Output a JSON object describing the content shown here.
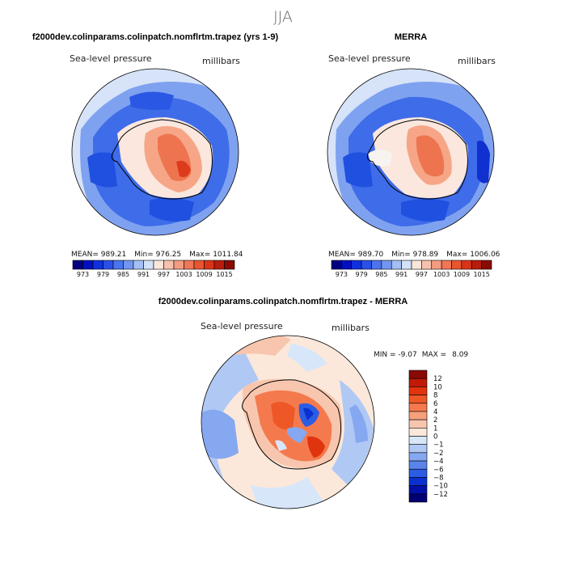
{
  "page": {
    "title": "JJA",
    "panel_left_title": "f2000dev.colinparams.colinpatch.nomflrtm.trapez (yrs 1-9)",
    "panel_right_title": "MERRA",
    "panel_diff_title": "f2000dev.colinparams.colinpatch.nomflrtm.trapez - MERRA"
  },
  "chart_data": [
    {
      "type": "heatmap",
      "name": "model",
      "variable_label": "Sea-level pressure",
      "units_label": "millibars",
      "stats": {
        "mean_label": "MEAN=",
        "mean": "989.21",
        "min_label": "Min=",
        "min": "976.25",
        "max_label": "Max=",
        "max": "1011.84"
      },
      "colorbar": {
        "ticks": [
          "973",
          "979",
          "985",
          "991",
          "997",
          "1003",
          "1009",
          "1015"
        ],
        "colors": [
          "#000080",
          "#0010c0",
          "#1030e0",
          "#2a50e8",
          "#4b74ee",
          "#7396f0",
          "#a4bff4",
          "#d4e2f8",
          "#fbe6dc",
          "#f7c2ad",
          "#f49c80",
          "#ef7656",
          "#e85530",
          "#d93418",
          "#b81c0c",
          "#8a0a04"
        ]
      }
    },
    {
      "type": "heatmap",
      "name": "merra",
      "variable_label": "Sea-level pressure",
      "units_label": "millibars",
      "stats": {
        "mean_label": "MEAN=",
        "mean": "989.70",
        "min_label": "Min=",
        "min": "978.89",
        "max_label": "Max=",
        "max": "1006.06"
      },
      "colorbar": {
        "ticks": [
          "973",
          "979",
          "985",
          "991",
          "997",
          "1003",
          "1009",
          "1015"
        ],
        "colors": [
          "#000080",
          "#0010c0",
          "#1030e0",
          "#2a50e8",
          "#4b74ee",
          "#7396f0",
          "#a4bff4",
          "#d4e2f8",
          "#fbe6dc",
          "#f7c2ad",
          "#f49c80",
          "#ef7656",
          "#e85530",
          "#d93418",
          "#b81c0c",
          "#8a0a04"
        ]
      }
    },
    {
      "type": "heatmap",
      "name": "difference",
      "variable_label": "Sea-level pressure",
      "units_label": "millibars",
      "stats": {
        "min_label": "MIN =",
        "min": "-9.07",
        "max_label": "MAX =",
        "max": "8.09"
      },
      "colorbar": {
        "ticks": [
          "12",
          "10",
          "8",
          "6",
          "4",
          "2",
          "1",
          "0",
          "−1",
          "−2",
          "−4",
          "−6",
          "−8",
          "−10",
          "−12"
        ],
        "colors": [
          "#8a0a04",
          "#c01a08",
          "#e0340e",
          "#ee5826",
          "#f47a4e",
          "#f6a07c",
          "#f8c6ae",
          "#fbe8da",
          "#d8e6fa",
          "#b0c8f4",
          "#86a8f0",
          "#5a84ea",
          "#2c5ce4",
          "#0a30d0",
          "#0010a8",
          "#000070"
        ]
      }
    }
  ]
}
